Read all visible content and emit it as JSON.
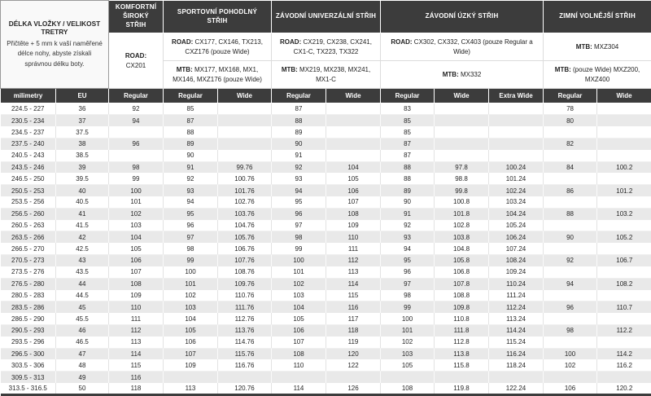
{
  "info": {
    "title": "DÉLKA VLOŽKY / VELIKOST TRETRY",
    "note": "Přičtěte + 5 mm k vaší naměřené délce nohy, abyste získali správnou délku boty."
  },
  "groups": [
    {
      "name": "KOMFORTNÍ ŠIROKÝ STŘIH"
    },
    {
      "name": "SPORTOVNÍ POHODLNÝ STŘIH"
    },
    {
      "name": "ZÁVODNÍ UNIVERZÁLNÍ STŘIH"
    },
    {
      "name": "ZÁVODNÍ ÚZKÝ STŘIH"
    },
    {
      "name": "ZIMNÍ VOLNĚJŠÍ STŘIH"
    }
  ],
  "models": {
    "komfortni_road": {
      "prefix": "ROAD:",
      "text": " CX201"
    },
    "sportovni_road": {
      "prefix": "ROAD:",
      "text": " CX177, CX146, TX213, CXZ176 (pouze Wide)"
    },
    "sportovni_mtb": {
      "prefix": "MTB:",
      "text": " MX177, MX168, MX1, MX146, MXZ176 (pouze Wide)"
    },
    "zavodni_univ_road": {
      "prefix": "ROAD:",
      "text": " CX219, CX238, CX241, CX1-C, TX223, TX322"
    },
    "zavodni_univ_mtb": {
      "prefix": "MTB:",
      "text": " MX219, MX238, MX241, MX1-C"
    },
    "zavodni_uzky_road": {
      "prefix": "ROAD:",
      "text": " CX302, CX332, CX403 (pouze Regular a Wide)"
    },
    "zavodni_uzky_mtb": {
      "prefix": "MTB:",
      "text": " MX332"
    },
    "zimni_mtb_top": {
      "prefix": "MTB:",
      "text": " MXZ304"
    },
    "zimni_mtb_bottom": {
      "prefix": "MTB:",
      "text": " (pouze Wide) MXZ200, MXZ400"
    }
  },
  "column_headers": [
    "milimetry",
    "EU",
    "Regular",
    "Regular",
    "Wide",
    "Regular",
    "Wide",
    "Regular",
    "Wide",
    "Extra Wide",
    "Regular",
    "Wide"
  ],
  "rows": [
    [
      "224.5 - 227",
      "36",
      "92",
      "85",
      "",
      "87",
      "",
      "83",
      "",
      "",
      "78",
      ""
    ],
    [
      "230.5 - 234",
      "37",
      "94",
      "87",
      "",
      "88",
      "",
      "85",
      "",
      "",
      "80",
      ""
    ],
    [
      "234.5 - 237",
      "37.5",
      "",
      "88",
      "",
      "89",
      "",
      "85",
      "",
      "",
      "",
      ""
    ],
    [
      "237.5 - 240",
      "38",
      "96",
      "89",
      "",
      "90",
      "",
      "87",
      "",
      "",
      "82",
      ""
    ],
    [
      "240.5 - 243",
      "38.5",
      "",
      "90",
      "",
      "91",
      "",
      "87",
      "",
      "",
      "",
      ""
    ],
    [
      "243.5 - 246",
      "39",
      "98",
      "91",
      "99.76",
      "92",
      "104",
      "88",
      "97.8",
      "100.24",
      "84",
      "100.2"
    ],
    [
      "246.5 - 250",
      "39.5",
      "99",
      "92",
      "100.76",
      "93",
      "105",
      "88",
      "98.8",
      "101.24",
      "",
      ""
    ],
    [
      "250.5 - 253",
      "40",
      "100",
      "93",
      "101.76",
      "94",
      "106",
      "89",
      "99.8",
      "102.24",
      "86",
      "101.2"
    ],
    [
      "253.5 - 256",
      "40.5",
      "101",
      "94",
      "102.76",
      "95",
      "107",
      "90",
      "100.8",
      "103.24",
      "",
      ""
    ],
    [
      "256.5 - 260",
      "41",
      "102",
      "95",
      "103.76",
      "96",
      "108",
      "91",
      "101.8",
      "104.24",
      "88",
      "103.2"
    ],
    [
      "260.5 - 263",
      "41.5",
      "103",
      "96",
      "104.76",
      "97",
      "109",
      "92",
      "102.8",
      "105.24",
      "",
      ""
    ],
    [
      "263.5 - 266",
      "42",
      "104",
      "97",
      "105.76",
      "98",
      "110",
      "93",
      "103.8",
      "106.24",
      "90",
      "105.2"
    ],
    [
      "266.5 - 270",
      "42.5",
      "105",
      "98",
      "106.76",
      "99",
      "111",
      "94",
      "104.8",
      "107.24",
      "",
      ""
    ],
    [
      "270.5 - 273",
      "43",
      "106",
      "99",
      "107.76",
      "100",
      "112",
      "95",
      "105.8",
      "108.24",
      "92",
      "106.7"
    ],
    [
      "273.5 - 276",
      "43.5",
      "107",
      "100",
      "108.76",
      "101",
      "113",
      "96",
      "106.8",
      "109.24",
      "",
      ""
    ],
    [
      "276.5 - 280",
      "44",
      "108",
      "101",
      "109.76",
      "102",
      "114",
      "97",
      "107.8",
      "110.24",
      "94",
      "108.2"
    ],
    [
      "280.5 - 283",
      "44.5",
      "109",
      "102",
      "110.76",
      "103",
      "115",
      "98",
      "108.8",
      "111.24",
      "",
      ""
    ],
    [
      "283.5 - 286",
      "45",
      "110",
      "103",
      "111.76",
      "104",
      "116",
      "99",
      "109.8",
      "112.24",
      "96",
      "110.7"
    ],
    [
      "286.5 - 290",
      "45.5",
      "111",
      "104",
      "112.76",
      "105",
      "117",
      "100",
      "110.8",
      "113.24",
      "",
      ""
    ],
    [
      "290.5 - 293",
      "46",
      "112",
      "105",
      "113.76",
      "106",
      "118",
      "101",
      "111.8",
      "114.24",
      "98",
      "112.2"
    ],
    [
      "293.5 - 296",
      "46.5",
      "113",
      "106",
      "114.76",
      "107",
      "119",
      "102",
      "112.8",
      "115.24",
      "",
      ""
    ],
    [
      "296.5 - 300",
      "47",
      "114",
      "107",
      "115.76",
      "108",
      "120",
      "103",
      "113.8",
      "116.24",
      "100",
      "114.2"
    ],
    [
      "303.5 - 306",
      "48",
      "115",
      "109",
      "116.76",
      "110",
      "122",
      "105",
      "115.8",
      "118.24",
      "102",
      "116.2"
    ],
    [
      "309.5 - 313",
      "49",
      "116",
      "",
      "",
      "",
      "",
      "",
      "",
      "",
      "",
      ""
    ],
    [
      "313.5 - 316.5",
      "50",
      "118",
      "113",
      "120.76",
      "114",
      "126",
      "108",
      "119.8",
      "122.24",
      "106",
      "120.2"
    ]
  ],
  "colors": {
    "header_dark": "#3c3c3c",
    "row_shade": "#e9e9e9",
    "header_text": "#ffffff",
    "body_text": "#262626"
  }
}
